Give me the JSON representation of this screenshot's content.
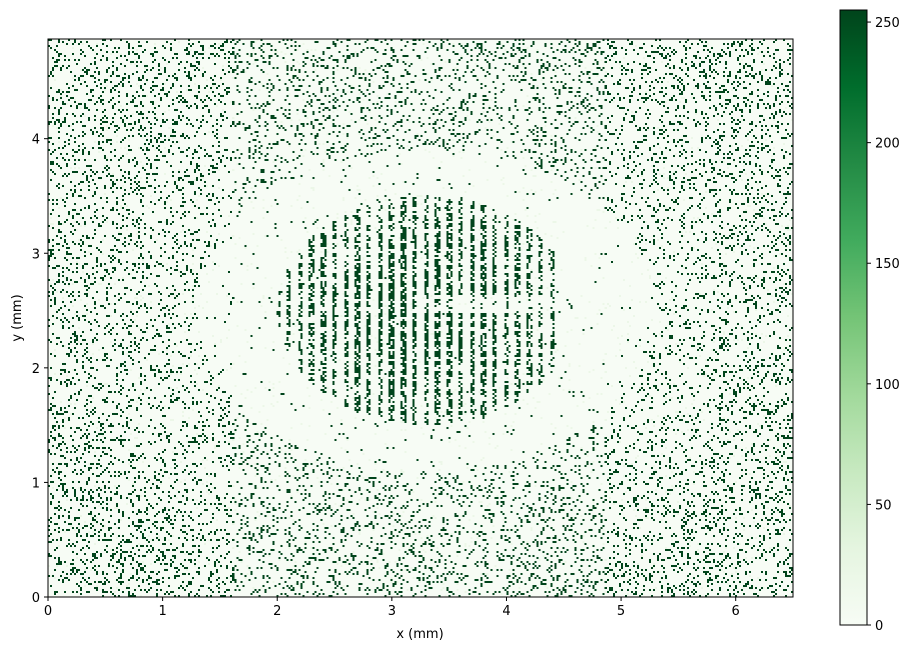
{
  "chart_data": {
    "type": "heatmap",
    "title": "",
    "xlabel": "x (mm)",
    "ylabel": "y (mm)",
    "xlim": [
      0,
      6.5
    ],
    "ylim": [
      0,
      4.87
    ],
    "x_ticks": [
      0,
      1,
      2,
      3,
      4,
      5,
      6
    ],
    "y_ticks": [
      0,
      1,
      2,
      3,
      4
    ],
    "colormap": "Greens",
    "color_low": "#f7fcf5",
    "color_high": "#00441b",
    "colorbar": {
      "range": [
        0,
        255
      ],
      "ticks": [
        0,
        50,
        100,
        150,
        200,
        250
      ]
    },
    "features": {
      "fringe_region": {
        "center_x": 3.3,
        "center_y": 2.5,
        "radius_x": 1.3,
        "radius_y": 1.0,
        "fringe_period_mm": 0.1,
        "value": 255
      },
      "clear_ring_center": [
        3.3,
        2.5
      ],
      "background_speckle": "sparse saturated pixels (value 255) on near-zero background"
    }
  }
}
